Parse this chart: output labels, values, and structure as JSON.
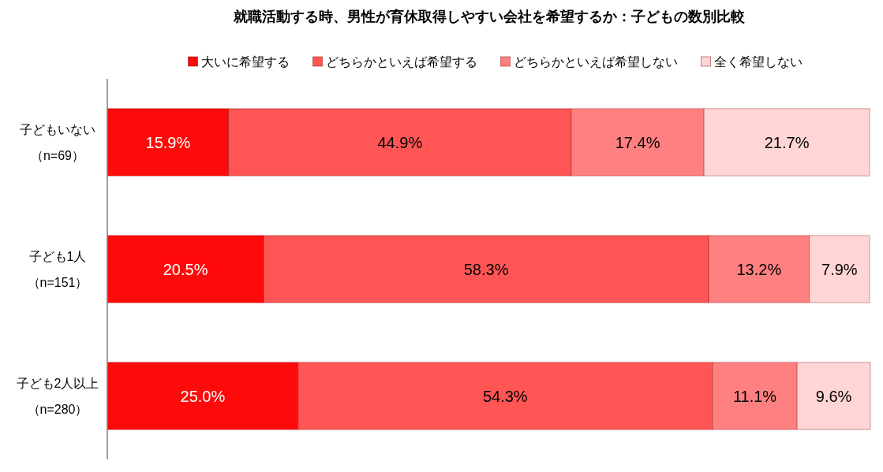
{
  "chart_data": {
    "type": "bar",
    "orientation": "horizontal",
    "stacked": true,
    "title": "就職活動する時、男性が育休取得しやすい会社を希望するか：子どもの数別比較",
    "categories": [
      "子どもいない（n=69）",
      "子ども1人（n=151）",
      "子ども2人以上（n=280）"
    ],
    "series": [
      {
        "name": "大いに希望する",
        "color": "#fe0a0a",
        "values": [
          15.9,
          20.5,
          25.0
        ],
        "value_labels": [
          "15.9%",
          "20.5%",
          "25.0%"
        ]
      },
      {
        "name": "どちらかといえば希望する",
        "color": "#ff5555",
        "values": [
          44.9,
          58.3,
          54.3
        ],
        "value_labels": [
          "44.9%",
          "58.3%",
          "54.3%"
        ]
      },
      {
        "name": "どちらかといえば希望しない",
        "color": "#ff8080",
        "values": [
          17.4,
          13.2,
          11.1
        ],
        "value_labels": [
          "17.4%",
          "13.2%",
          "11.1%"
        ]
      },
      {
        "name": "全く希望しない",
        "color": "#ffd5d5",
        "values": [
          21.7,
          7.9,
          9.6
        ],
        "value_labels": [
          "21.7%",
          "7.9%",
          "9.6%"
        ]
      }
    ],
    "xlim": [
      0,
      100
    ],
    "tick_labels": "y",
    "legend": "top"
  }
}
